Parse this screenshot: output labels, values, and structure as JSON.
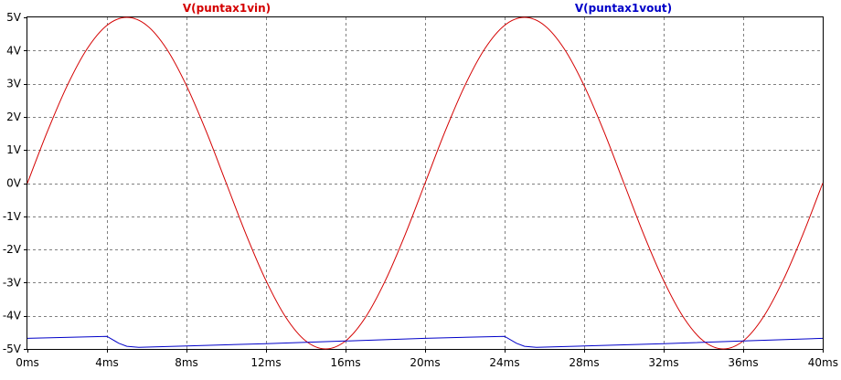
{
  "chart_data": {
    "type": "line",
    "title": "",
    "xlabel": "",
    "ylabel": "",
    "xlim": [
      0,
      40
    ],
    "ylim": [
      -5,
      5
    ],
    "grid": true,
    "legend_position": "top",
    "x_tick_labels": [
      "0ms",
      "4ms",
      "8ms",
      "12ms",
      "16ms",
      "20ms",
      "24ms",
      "28ms",
      "32ms",
      "36ms",
      "40ms"
    ],
    "y_tick_labels": [
      "5V",
      "4V",
      "3V",
      "2V",
      "1V",
      "0V",
      "-1V",
      "-2V",
      "-3V",
      "-4V",
      "-5V"
    ],
    "x_ticks": [
      0,
      4,
      8,
      12,
      16,
      20,
      24,
      28,
      32,
      36,
      40
    ],
    "y_ticks": [
      5,
      4,
      3,
      2,
      1,
      0,
      -1,
      -2,
      -3,
      -4,
      -5
    ],
    "series": [
      {
        "name": "V(puntax1vin)",
        "color": "#d40000",
        "x": [
          0,
          1,
          2,
          3,
          4,
          5,
          6,
          7,
          8,
          9,
          10,
          11,
          12,
          13,
          14,
          15,
          16,
          17,
          18,
          19,
          20,
          21,
          22,
          23,
          24,
          25,
          26,
          27,
          28,
          29,
          30,
          31,
          32,
          33,
          34,
          35,
          36,
          37,
          38,
          39,
          40
        ],
        "y": [
          0,
          1.55,
          2.94,
          4.05,
          4.76,
          5,
          4.76,
          4.05,
          2.94,
          1.55,
          0,
          -1.55,
          -2.94,
          -4.05,
          -4.76,
          -5,
          -4.76,
          -4.05,
          -2.94,
          -1.55,
          0,
          1.55,
          2.94,
          4.05,
          4.76,
          5,
          4.76,
          4.05,
          2.94,
          1.55,
          0,
          -1.55,
          -2.94,
          -4.05,
          -4.76,
          -5,
          -4.76,
          -4.05,
          -2.94,
          -1.55,
          0
        ]
      },
      {
        "name": "V(puntax1vout)",
        "color": "#0000c8",
        "x": [
          0,
          4,
          4.6,
          5,
          5.6,
          8,
          12,
          16,
          20,
          24,
          24.6,
          25,
          25.6,
          28,
          32,
          36,
          40
        ],
        "y": [
          -4.68,
          -4.62,
          -4.83,
          -4.92,
          -4.95,
          -4.91,
          -4.84,
          -4.76,
          -4.68,
          -4.62,
          -4.83,
          -4.92,
          -4.95,
          -4.91,
          -4.84,
          -4.76,
          -4.68
        ]
      }
    ]
  }
}
